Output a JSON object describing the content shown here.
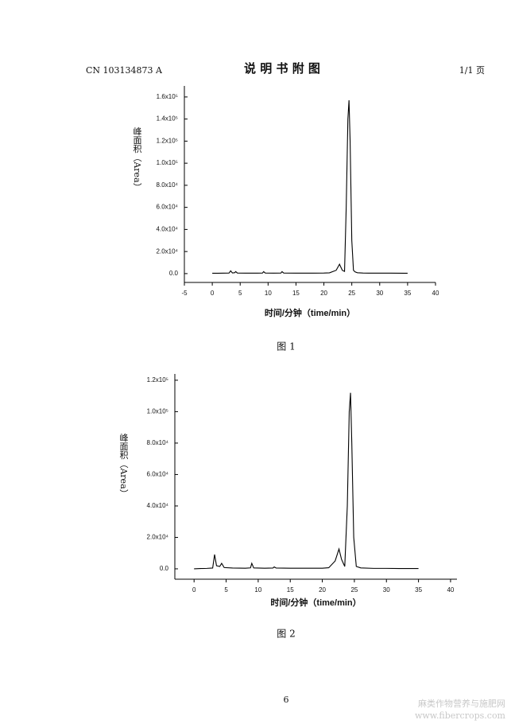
{
  "header": {
    "left": "CN 103134873 A",
    "title": "说 明 书 附 图",
    "right": "1/1 页"
  },
  "chart_data": [
    {
      "type": "line",
      "xlabel": "时间/分钟（time/min）",
      "ylabel": "峰面积（Area）",
      "caption": "图 1",
      "color": "#000000",
      "xlim": [
        -5,
        40
      ],
      "xticks": [
        -5,
        0,
        5,
        10,
        15,
        20,
        25,
        30,
        35,
        40
      ],
      "ylim": [
        -8000,
        170000
      ],
      "yticks": [
        {
          "value": 0,
          "label": "0.0"
        },
        {
          "value": 20000,
          "label": "2.0x10⁴"
        },
        {
          "value": 40000,
          "label": "4.0x10⁴"
        },
        {
          "value": 60000,
          "label": "6.0x10⁴"
        },
        {
          "value": 80000,
          "label": "8.0x10⁴"
        },
        {
          "value": 100000,
          "label": "1.0x10⁵"
        },
        {
          "value": 120000,
          "label": "1.2x10⁵"
        },
        {
          "value": 140000,
          "label": "1.4x10⁵"
        },
        {
          "value": 160000,
          "label": "1.6x10⁵"
        }
      ],
      "x": [
        0,
        1,
        2,
        3,
        3.3,
        3.6,
        4,
        4.2,
        4.5,
        6,
        8,
        9,
        9.2,
        9.5,
        11,
        12.3,
        12.5,
        12.8,
        15,
        18,
        20,
        21,
        22.2,
        22.8,
        23.3,
        23.7,
        24,
        24.3,
        24.5,
        24.7,
        25,
        25.3,
        25.6,
        26,
        27,
        28,
        30,
        32,
        35
      ],
      "values": [
        300,
        300,
        400,
        500,
        2500,
        600,
        800,
        1800,
        500,
        400,
        400,
        500,
        1800,
        500,
        400,
        500,
        1800,
        500,
        400,
        400,
        500,
        700,
        3000,
        8500,
        3000,
        2000,
        60000,
        140000,
        157000,
        120000,
        30000,
        3000,
        1500,
        800,
        500,
        400,
        400,
        400,
        300
      ]
    },
    {
      "type": "line",
      "xlabel": "时间/分钟（time/min）",
      "ylabel": "峰面积（Area）",
      "caption": "图 2",
      "color": "#000000",
      "xlim": [
        -3,
        41
      ],
      "xticks": [
        0,
        5,
        10,
        15,
        20,
        25,
        30,
        35,
        40
      ],
      "ylim": [
        -6600,
        124000
      ],
      "yticks": [
        {
          "value": 0,
          "label": "0.0"
        },
        {
          "value": 20000,
          "label": "2.0x10⁴"
        },
        {
          "value": 40000,
          "label": "4.0x10⁴"
        },
        {
          "value": 60000,
          "label": "6.0x10⁴"
        },
        {
          "value": 80000,
          "label": "8.0x10⁴"
        },
        {
          "value": 100000,
          "label": "1.0x10⁵"
        },
        {
          "value": 120000,
          "label": "1.2x10⁵"
        }
      ],
      "x": [
        0,
        1,
        2,
        2.9,
        3.2,
        3.5,
        4,
        4.3,
        4.7,
        6,
        8,
        8.8,
        9,
        9.3,
        11,
        12.3,
        12.5,
        12.8,
        15,
        18,
        20,
        21,
        22,
        22.6,
        23,
        23.5,
        23.9,
        24.2,
        24.4,
        24.6,
        24.9,
        25.3,
        26,
        28,
        30,
        32,
        35
      ],
      "values": [
        0,
        200,
        300,
        500,
        9100,
        2000,
        1500,
        3500,
        800,
        500,
        400,
        600,
        3500,
        600,
        400,
        500,
        1200,
        500,
        400,
        400,
        400,
        700,
        5000,
        12600,
        6000,
        1500,
        40000,
        100000,
        112000,
        80000,
        20000,
        1500,
        600,
        300,
        300,
        200,
        200
      ]
    }
  ],
  "page_number": "6",
  "watermark": [
    "麻类作物营养与施肥网",
    "www.fibercrops.com"
  ]
}
